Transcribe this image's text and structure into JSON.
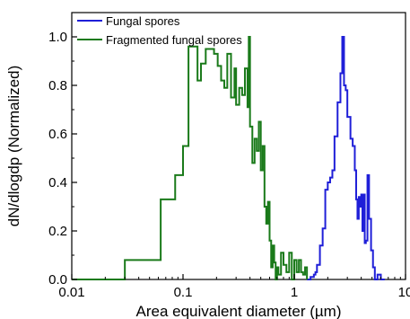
{
  "chart_data": {
    "type": "line",
    "title": "",
    "xlabel": "Area equivalent diameter (µm)",
    "ylabel": "dN/dlogdp (Normalized)",
    "xscale": "log",
    "xlim": [
      0.01,
      10
    ],
    "ylim": [
      0,
      1.1
    ],
    "xticks": [
      0.01,
      0.1,
      1,
      10
    ],
    "xtick_labels": [
      "0.01",
      "0.1",
      "1",
      "10"
    ],
    "yticks": [
      0,
      0.2,
      0.4,
      0.6,
      0.8,
      1.0
    ],
    "ytick_labels": [
      "0.0",
      "0.2",
      "0.4",
      "0.6",
      "0.8",
      "1.0"
    ],
    "grid": false,
    "legend_position": "top-left",
    "series": [
      {
        "name": "Fungal spores",
        "color": "#1f1fd8",
        "step": true,
        "x": [
          1.3,
          1.4,
          1.5,
          1.55,
          1.6,
          1.7,
          1.8,
          1.9,
          2.0,
          2.1,
          2.2,
          2.3,
          2.45,
          2.6,
          2.7,
          2.8,
          2.9,
          3.0,
          3.1,
          3.2,
          3.35,
          3.5,
          3.6,
          3.7,
          3.8,
          3.9,
          4.0,
          4.1,
          4.2,
          4.3,
          4.4,
          4.55,
          4.7,
          4.9,
          5.1,
          5.3,
          5.6,
          6.0,
          6.5
        ],
        "y": [
          0.0,
          0.01,
          0.02,
          0.03,
          0.06,
          0.14,
          0.21,
          0.37,
          0.4,
          0.42,
          0.45,
          0.59,
          0.73,
          0.85,
          1.0,
          0.8,
          0.78,
          0.67,
          0.67,
          0.58,
          0.55,
          0.45,
          0.33,
          0.25,
          0.34,
          0.3,
          0.35,
          0.2,
          0.35,
          0.15,
          0.16,
          0.43,
          0.25,
          0.12,
          0.05,
          0.0,
          0.02,
          0.0,
          0.0
        ]
      },
      {
        "name": "Fragmented fungal spores",
        "color": "#1a7a1a",
        "step": true,
        "x": [
          0.01,
          0.03,
          0.045,
          0.063,
          0.085,
          0.1,
          0.112,
          0.12,
          0.135,
          0.145,
          0.16,
          0.175,
          0.19,
          0.205,
          0.22,
          0.235,
          0.25,
          0.27,
          0.29,
          0.3,
          0.32,
          0.34,
          0.36,
          0.38,
          0.39,
          0.4,
          0.42,
          0.44,
          0.46,
          0.48,
          0.5,
          0.52,
          0.54,
          0.56,
          0.58,
          0.6,
          0.62,
          0.64,
          0.66,
          0.68,
          0.7,
          0.72,
          0.76,
          0.8,
          0.85,
          0.9,
          0.95,
          1.0,
          1.05,
          1.1,
          1.15,
          1.2,
          1.25,
          1.3
        ],
        "y": [
          0.0,
          0.08,
          0.08,
          0.33,
          0.43,
          0.55,
          0.96,
          0.96,
          0.82,
          0.89,
          0.95,
          0.95,
          0.93,
          0.88,
          0.82,
          0.79,
          0.93,
          0.75,
          0.87,
          0.72,
          0.79,
          0.76,
          0.87,
          0.71,
          1.0,
          0.63,
          0.48,
          0.58,
          0.53,
          0.65,
          0.45,
          0.55,
          0.3,
          0.23,
          0.32,
          0.16,
          0.05,
          0.14,
          0.07,
          0.0,
          0.05,
          0.02,
          0.11,
          0.06,
          0.03,
          0.11,
          0.0,
          0.08,
          0.03,
          0.08,
          0.03,
          0.02,
          0.05,
          0.0
        ]
      }
    ]
  }
}
